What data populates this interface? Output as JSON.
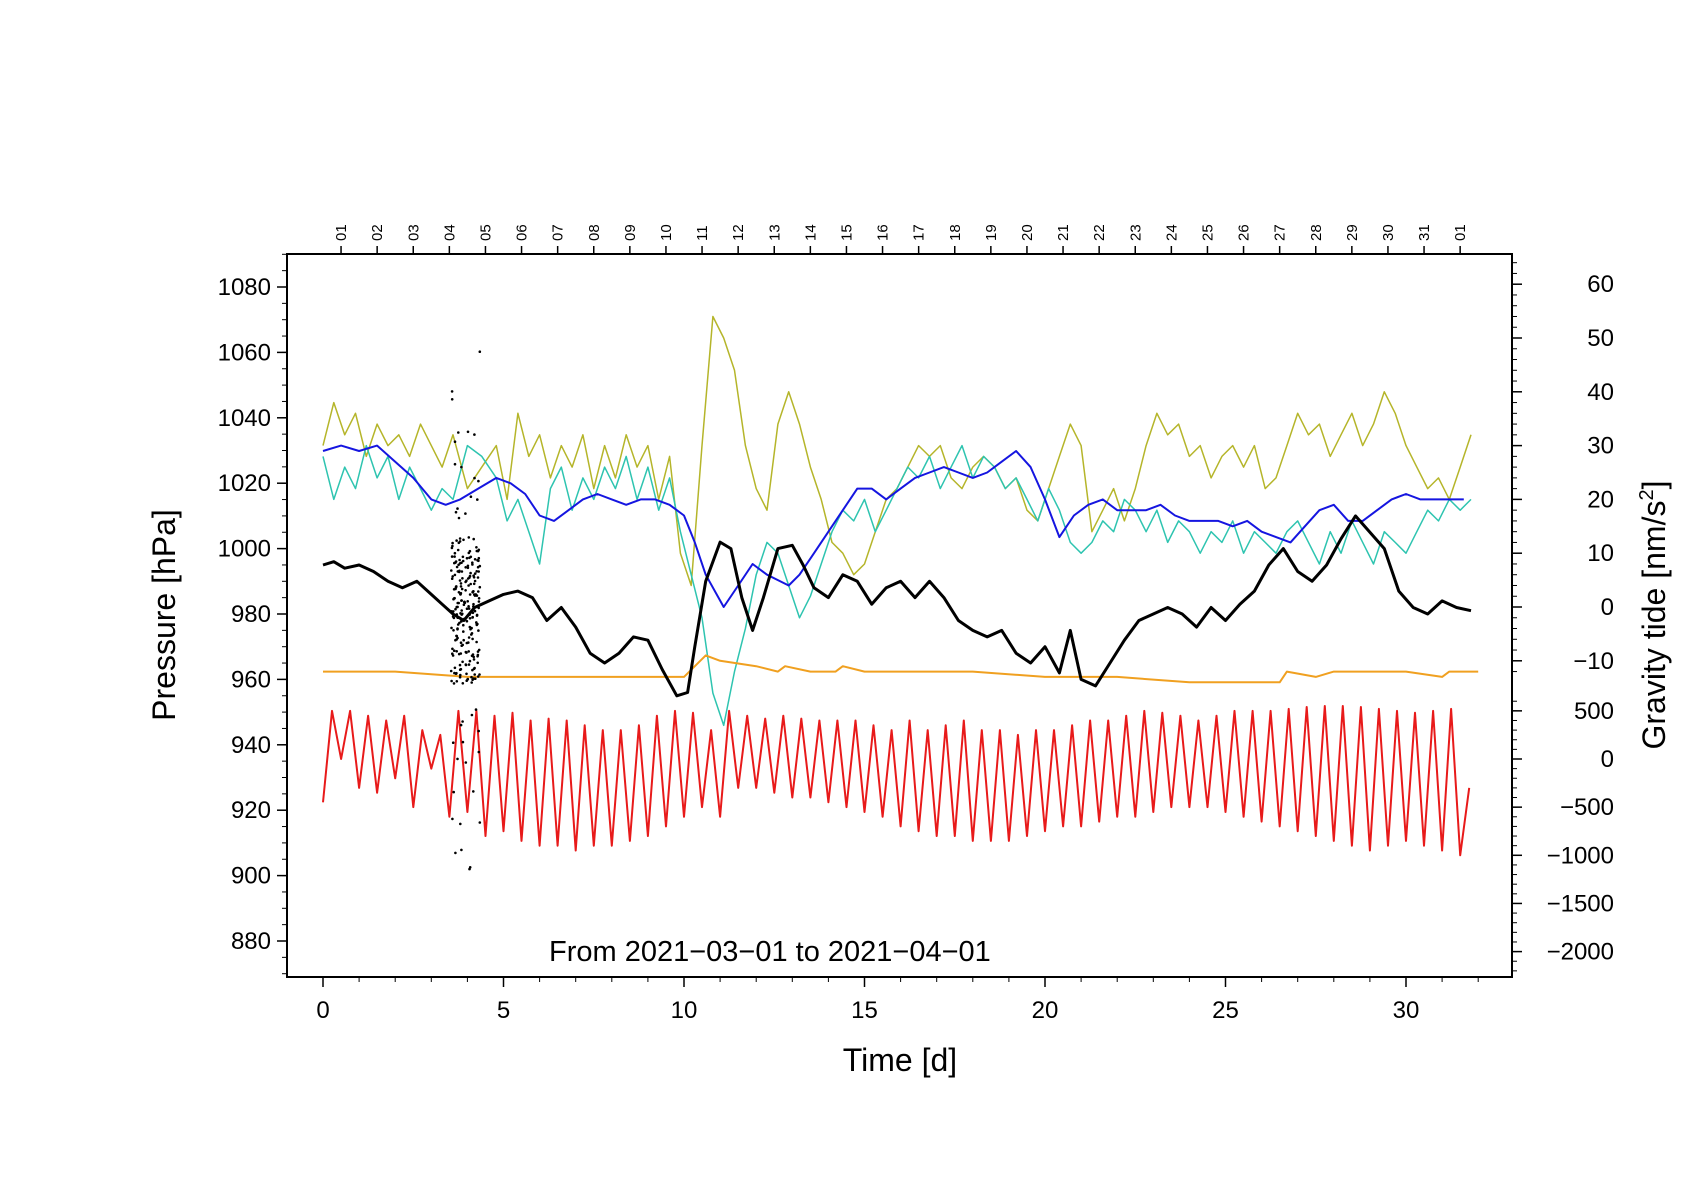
{
  "chart_data": {
    "type": "line",
    "title": "",
    "caption": "From 2021−03−01 to 2021−04−01",
    "xlabel": "Time [d]",
    "ylabel_left": "Pressure [hPa]",
    "ylabel_right_prefix": "Gravity tide [nm/s",
    "ylabel_right_sup": "2",
    "ylabel_right_suffix": "]",
    "xlim": [
      -1,
      33
    ],
    "ylim_left": [
      870,
      1090
    ],
    "x_ticks": [
      "0",
      "5",
      "10",
      "15",
      "20",
      "25",
      "30"
    ],
    "y_left_ticks": [
      "880",
      "900",
      "920",
      "940",
      "960",
      "980",
      "1000",
      "1020",
      "1040",
      "1060",
      "1080"
    ],
    "y_right_upper_ticks": [
      "60",
      "50",
      "40",
      "30",
      "20",
      "10",
      "0",
      "−10"
    ],
    "y_right_lower_ticks": [
      "500",
      "0",
      "−500",
      "−1000",
      "−1500",
      "−2000"
    ],
    "top_day_labels": [
      "01",
      "02",
      "03",
      "04",
      "05",
      "06",
      "07",
      "08",
      "09",
      "10",
      "11",
      "12",
      "13",
      "14",
      "15",
      "16",
      "17",
      "18",
      "19",
      "20",
      "21",
      "22",
      "23",
      "24",
      "25",
      "26",
      "27",
      "28",
      "29",
      "30",
      "31",
      "01"
    ],
    "series": [
      {
        "name": "pressure",
        "color": "#000000",
        "style": "thick line + scatter burst near day 3.8",
        "x": [
          0,
          0.3,
          0.6,
          1,
          1.4,
          1.8,
          2.2,
          2.6,
          3,
          3.3,
          3.6,
          3.9,
          4.2,
          4.6,
          5,
          5.4,
          5.8,
          6.2,
          6.6,
          7,
          7.4,
          7.8,
          8.2,
          8.6,
          9,
          9.4,
          9.8,
          10.1,
          10.3,
          10.6,
          11,
          11.3,
          11.6,
          11.9,
          12.2,
          12.6,
          13,
          13.3,
          13.6,
          14,
          14.4,
          14.8,
          15.2,
          15.6,
          16,
          16.4,
          16.8,
          17.2,
          17.6,
          18,
          18.4,
          18.8,
          19.2,
          19.6,
          20,
          20.4,
          20.7,
          21,
          21.4,
          21.8,
          22.2,
          22.6,
          23,
          23.4,
          23.8,
          24.2,
          24.6,
          25,
          25.4,
          25.8,
          26.2,
          26.6,
          27,
          27.4,
          27.8,
          28.2,
          28.6,
          29,
          29.4,
          29.8,
          30.2,
          30.6,
          31,
          31.4,
          31.8
        ],
        "y": [
          995,
          996,
          994,
          995,
          993,
          990,
          988,
          990,
          986,
          983,
          980,
          978,
          982,
          984,
          986,
          987,
          985,
          978,
          982,
          976,
          968,
          965,
          968,
          973,
          972,
          963,
          955,
          956,
          970,
          990,
          1002,
          1000,
          985,
          975,
          985,
          1000,
          1001,
          995,
          988,
          985,
          992,
          990,
          983,
          988,
          990,
          985,
          990,
          985,
          978,
          975,
          973,
          975,
          968,
          965,
          970,
          962,
          975,
          960,
          958,
          965,
          972,
          978,
          980,
          982,
          980,
          976,
          982,
          978,
          983,
          987,
          995,
          1000,
          993,
          990,
          995,
          1003,
          1010,
          1005,
          1000,
          987,
          982,
          980,
          984,
          982,
          981
        ]
      },
      {
        "name": "gravity-residual-olive",
        "color": "#b5b52a",
        "x": [
          0,
          0.3,
          0.6,
          0.9,
          1.2,
          1.5,
          1.8,
          2.1,
          2.4,
          2.7,
          3,
          3.3,
          3.6,
          4,
          4.4,
          4.8,
          5.1,
          5.4,
          5.7,
          6,
          6.3,
          6.6,
          6.9,
          7.2,
          7.5,
          7.8,
          8.1,
          8.4,
          8.7,
          9,
          9.3,
          9.6,
          9.9,
          10.2,
          10.5,
          10.8,
          11.1,
          11.4,
          11.7,
          12,
          12.3,
          12.6,
          12.9,
          13.2,
          13.5,
          13.8,
          14.1,
          14.4,
          14.7,
          15,
          15.3,
          15.6,
          15.9,
          16.2,
          16.5,
          16.8,
          17.1,
          17.4,
          17.7,
          18,
          18.3,
          18.6,
          18.9,
          19.2,
          19.5,
          19.8,
          20.1,
          20.4,
          20.7,
          21,
          21.3,
          21.6,
          21.9,
          22.2,
          22.5,
          22.8,
          23.1,
          23.4,
          23.7,
          24,
          24.3,
          24.6,
          24.9,
          25.2,
          25.5,
          25.8,
          26.1,
          26.4,
          26.7,
          27,
          27.3,
          27.6,
          27.9,
          28.2,
          28.5,
          28.8,
          29.1,
          29.4,
          29.7,
          30,
          30.3,
          30.6,
          30.9,
          31.2,
          31.5,
          31.8
        ],
        "y": [
          30,
          38,
          32,
          36,
          28,
          34,
          30,
          32,
          28,
          34,
          30,
          26,
          32,
          22,
          26,
          30,
          20,
          36,
          28,
          32,
          24,
          30,
          26,
          32,
          22,
          30,
          24,
          32,
          26,
          30,
          20,
          28,
          10,
          4,
          30,
          54,
          50,
          44,
          30,
          22,
          18,
          34,
          40,
          34,
          26,
          20,
          12,
          10,
          6,
          8,
          14,
          20,
          22,
          26,
          30,
          28,
          30,
          24,
          22,
          26,
          28,
          26,
          22,
          24,
          18,
          16,
          22,
          28,
          34,
          30,
          14,
          18,
          22,
          16,
          22,
          30,
          36,
          32,
          34,
          28,
          30,
          24,
          28,
          30,
          26,
          30,
          22,
          24,
          30,
          36,
          32,
          34,
          28,
          32,
          36,
          30,
          34,
          40,
          36,
          30,
          26,
          22,
          24,
          20,
          26,
          32
        ]
      },
      {
        "name": "gravity-residual-teal",
        "color": "#2ec4b0",
        "x": [
          0,
          0.3,
          0.6,
          0.9,
          1.2,
          1.5,
          1.8,
          2.1,
          2.4,
          2.7,
          3,
          3.3,
          3.6,
          4,
          4.4,
          4.8,
          5.1,
          5.4,
          5.7,
          6,
          6.3,
          6.6,
          6.9,
          7.2,
          7.5,
          7.8,
          8.1,
          8.4,
          8.7,
          9,
          9.3,
          9.6,
          9.9,
          10.2,
          10.5,
          10.8,
          11.1,
          11.4,
          11.7,
          12,
          12.3,
          12.6,
          12.9,
          13.2,
          13.5,
          13.8,
          14.1,
          14.4,
          14.7,
          15,
          15.3,
          15.6,
          15.9,
          16.2,
          16.5,
          16.8,
          17.1,
          17.4,
          17.7,
          18,
          18.3,
          18.6,
          18.9,
          19.2,
          19.5,
          19.8,
          20.1,
          20.4,
          20.7,
          21,
          21.3,
          21.6,
          21.9,
          22.2,
          22.5,
          22.8,
          23.1,
          23.4,
          23.7,
          24,
          24.3,
          24.6,
          24.9,
          25.2,
          25.5,
          25.8,
          26.1,
          26.4,
          26.7,
          27,
          27.3,
          27.6,
          27.9,
          28.2,
          28.5,
          28.8,
          29.1,
          29.4,
          29.7,
          30,
          30.3,
          30.6,
          30.9,
          31.2,
          31.5,
          31.8
        ],
        "y": [
          28,
          20,
          26,
          22,
          30,
          24,
          28,
          20,
          26,
          22,
          18,
          22,
          20,
          30,
          28,
          24,
          16,
          20,
          14,
          8,
          22,
          26,
          18,
          24,
          20,
          26,
          22,
          28,
          20,
          26,
          18,
          24,
          14,
          6,
          -2,
          -16,
          -22,
          -12,
          -4,
          6,
          12,
          10,
          4,
          -2,
          2,
          8,
          14,
          18,
          16,
          20,
          14,
          18,
          22,
          26,
          24,
          28,
          22,
          26,
          30,
          24,
          28,
          26,
          22,
          24,
          20,
          16,
          22,
          18,
          12,
          10,
          12,
          16,
          14,
          20,
          18,
          14,
          18,
          12,
          16,
          14,
          10,
          14,
          12,
          16,
          10,
          14,
          12,
          10,
          14,
          16,
          12,
          8,
          14,
          10,
          16,
          12,
          8,
          14,
          12,
          10,
          14,
          18,
          16,
          20,
          18,
          20
        ]
      },
      {
        "name": "gravity-smooth-blue",
        "color": "#1515e0",
        "x": [
          0,
          0.5,
          1,
          1.5,
          2,
          2.5,
          3,
          3.4,
          3.8,
          4.3,
          4.8,
          5.2,
          5.6,
          6,
          6.4,
          6.8,
          7.2,
          7.6,
          8,
          8.4,
          8.8,
          9.2,
          9.6,
          10,
          10.3,
          10.6,
          11.1,
          11.5,
          11.9,
          12.3,
          12.6,
          12.9,
          13.2,
          13.6,
          14,
          14.4,
          14.8,
          15.2,
          15.6,
          16,
          16.4,
          16.8,
          17.2,
          17.6,
          18,
          18.4,
          18.8,
          19.2,
          19.6,
          20,
          20.4,
          20.8,
          21.2,
          21.6,
          22,
          22.4,
          22.8,
          23.2,
          23.6,
          24,
          24.4,
          24.8,
          25.2,
          25.6,
          26,
          26.4,
          26.8,
          27.2,
          27.6,
          28,
          28.4,
          28.8,
          29.2,
          29.6,
          30,
          30.4,
          30.8,
          31.2,
          31.6
        ],
        "y": [
          29,
          30,
          29,
          30,
          27,
          24,
          20,
          19,
          20,
          22,
          24,
          23,
          21,
          17,
          16,
          18,
          20,
          21,
          20,
          19,
          20,
          20,
          19,
          17,
          12,
          6,
          0,
          4,
          8,
          6,
          5,
          4,
          6,
          10,
          14,
          18,
          22,
          22,
          20,
          22,
          24,
          25,
          26,
          25,
          24,
          25,
          27,
          29,
          26,
          20,
          13,
          17,
          19,
          20,
          18,
          18,
          18,
          19,
          17,
          16,
          16,
          16,
          15,
          16,
          14,
          13,
          12,
          15,
          18,
          19,
          16,
          16,
          18,
          20,
          21,
          20,
          20,
          20,
          20
        ]
      },
      {
        "name": "barometric-orange",
        "color": "#f0a020",
        "x": [
          0,
          2,
          4,
          6,
          8,
          10,
          10.6,
          11,
          12,
          12.6,
          12.8,
          13.5,
          14.2,
          14.4,
          15,
          16,
          18,
          20,
          22,
          24,
          26,
          26.5,
          26.7,
          27.5,
          28,
          28.7,
          29,
          30,
          31,
          31.2,
          32
        ],
        "y": [
          -12,
          -12,
          -13,
          -13,
          -13,
          -13,
          -9,
          -10,
          -11,
          -12,
          -11,
          -12,
          -12,
          -11,
          -12,
          -12,
          -12,
          -13,
          -13,
          -14,
          -14,
          -14,
          -12,
          -13,
          -12,
          -12,
          -12,
          -12,
          -13,
          -12,
          -12
        ]
      },
      {
        "name": "gravity-tide-red",
        "color": "#e81a1a",
        "scale": "right lower axis nm/s2",
        "x": [
          0,
          0.25,
          0.5,
          0.75,
          1,
          1.25,
          1.5,
          1.75,
          2,
          2.25,
          2.5,
          2.75,
          3,
          3.25,
          3.5,
          3.75,
          4,
          4.25,
          4.5,
          4.75,
          5,
          5.25,
          5.5,
          5.75,
          6,
          6.25,
          6.5,
          6.75,
          7,
          7.25,
          7.5,
          7.75,
          8,
          8.25,
          8.5,
          8.75,
          9,
          9.25,
          9.5,
          9.75,
          10,
          10.25,
          10.5,
          10.75,
          11,
          11.25,
          11.5,
          11.75,
          12,
          12.25,
          12.5,
          12.75,
          13,
          13.25,
          13.5,
          13.75,
          14,
          14.25,
          14.5,
          14.75,
          15,
          15.25,
          15.5,
          15.75,
          16,
          16.25,
          16.5,
          16.75,
          17,
          17.25,
          17.5,
          17.75,
          18,
          18.25,
          18.5,
          18.75,
          19,
          19.25,
          19.5,
          19.75,
          20,
          20.25,
          20.5,
          20.75,
          21,
          21.25,
          21.5,
          21.75,
          22,
          22.25,
          22.5,
          22.75,
          23,
          23.25,
          23.5,
          23.75,
          24,
          24.25,
          24.5,
          24.75,
          25,
          25.25,
          25.5,
          25.75,
          26,
          26.25,
          26.5,
          26.75,
          27,
          27.25,
          27.5,
          27.75,
          28,
          28.25,
          28.5,
          28.75,
          29,
          29.25,
          29.5,
          29.75,
          30,
          30.25,
          30.5,
          30.75,
          31,
          31.25,
          31.5,
          31.75
        ],
        "y": [
          -450,
          500,
          0,
          500,
          -300,
          450,
          -350,
          400,
          -200,
          450,
          -500,
          300,
          -100,
          250,
          -600,
          500,
          -550,
          500,
          -800,
          450,
          -750,
          480,
          -850,
          400,
          -900,
          420,
          -900,
          400,
          -950,
          350,
          -900,
          300,
          -900,
          300,
          -850,
          350,
          -800,
          450,
          -700,
          500,
          -600,
          480,
          -500,
          300,
          -600,
          500,
          -300,
          450,
          -300,
          420,
          -350,
          450,
          -400,
          420,
          -400,
          400,
          -450,
          400,
          -500,
          400,
          -550,
          350,
          -600,
          300,
          -700,
          400,
          -750,
          300,
          -800,
          350,
          -800,
          400,
          -850,
          300,
          -850,
          300,
          -850,
          250,
          -800,
          300,
          -750,
          300,
          -700,
          350,
          -700,
          400,
          -650,
          400,
          -600,
          450,
          -600,
          500,
          -550,
          480,
          -500,
          450,
          -500,
          400,
          -500,
          450,
          -550,
          500,
          -600,
          500,
          -650,
          500,
          -700,
          520,
          -750,
          540,
          -800,
          550,
          -850,
          550,
          -900,
          540,
          -950,
          520,
          -900,
          500,
          -850,
          480,
          -900,
          500,
          -950,
          520,
          -1000,
          -300
        ]
      }
    ]
  }
}
